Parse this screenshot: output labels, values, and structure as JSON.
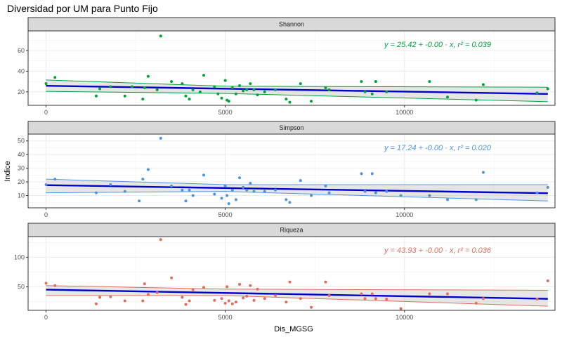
{
  "title": "Diversidad por UM para Punto Fijo",
  "x_axis_title": "Dis_MGSG",
  "y_axis_title": "Indice",
  "chart_data": {
    "type": "scatter",
    "title": "Diversidad por UM para Punto Fijo",
    "xlabel": "Dis_MGSG",
    "ylabel": "Indice",
    "xlim": [
      -500,
      14200
    ],
    "x_ticks": [
      0,
      5000,
      10000
    ],
    "grid": true,
    "fit_line_color": "#0000cc",
    "panels": [
      {
        "name": "Shannon",
        "color": "#00a33c",
        "ylim": [
          7,
          79
        ],
        "y_ticks": [
          20,
          40,
          60
        ],
        "equation": "y = 25.42 + -0.00 · x,  r² = 0.039",
        "fit": {
          "x": [
            0,
            14000
          ],
          "y": [
            25.9,
            18.0
          ]
        },
        "band_upper": [
          [
            0,
            31.5
          ],
          [
            5000,
            25.5
          ],
          [
            14000,
            24.5
          ]
        ],
        "band_lower": [
          [
            0,
            20.5
          ],
          [
            5000,
            18.5
          ],
          [
            14000,
            10.5
          ]
        ],
        "points": [
          [
            0,
            28
          ],
          [
            250,
            34
          ],
          [
            1400,
            16
          ],
          [
            1500,
            23
          ],
          [
            1800,
            25
          ],
          [
            2200,
            16
          ],
          [
            2400,
            25
          ],
          [
            2700,
            13
          ],
          [
            2750,
            24
          ],
          [
            2850,
            35
          ],
          [
            3100,
            22
          ],
          [
            3200,
            74
          ],
          [
            3500,
            30
          ],
          [
            3800,
            28
          ],
          [
            3900,
            16
          ],
          [
            4000,
            13
          ],
          [
            4100,
            22
          ],
          [
            4300,
            20
          ],
          [
            4400,
            36
          ],
          [
            4700,
            25
          ],
          [
            4800,
            18
          ],
          [
            4900,
            14
          ],
          [
            5000,
            31
          ],
          [
            5050,
            12
          ],
          [
            5100,
            11
          ],
          [
            5200,
            24
          ],
          [
            5300,
            18
          ],
          [
            5400,
            26
          ],
          [
            5500,
            21
          ],
          [
            5600,
            22
          ],
          [
            5700,
            28
          ],
          [
            5800,
            22
          ],
          [
            5900,
            17
          ],
          [
            6100,
            20
          ],
          [
            6400,
            22
          ],
          [
            6700,
            13
          ],
          [
            6800,
            10
          ],
          [
            7100,
            28
          ],
          [
            7400,
            11
          ],
          [
            7800,
            24
          ],
          [
            7900,
            22
          ],
          [
            8800,
            30
          ],
          [
            8900,
            20
          ],
          [
            9100,
            18
          ],
          [
            9200,
            30
          ],
          [
            9500,
            20
          ],
          [
            10700,
            30
          ],
          [
            11200,
            15
          ],
          [
            12000,
            12
          ],
          [
            12200,
            27
          ],
          [
            13700,
            19
          ],
          [
            14000,
            23
          ]
        ]
      },
      {
        "name": "Simpson",
        "color": "#4d94e0",
        "ylim": [
          1,
          55
        ],
        "y_ticks": [
          10,
          20,
          30,
          40,
          50
        ],
        "equation": "y = 17.24 + -0.00 · x,  r² = 0.020",
        "fit": {
          "x": [
            0,
            14000
          ],
          "y": [
            17.6,
            11.7
          ]
        },
        "band_upper": [
          [
            0,
            22
          ],
          [
            5000,
            18
          ],
          [
            14000,
            18
          ]
        ],
        "band_lower": [
          [
            0,
            12
          ],
          [
            5000,
            13
          ],
          [
            14000,
            6
          ]
        ],
        "points": [
          [
            0,
            18
          ],
          [
            250,
            22
          ],
          [
            1400,
            12
          ],
          [
            1800,
            18
          ],
          [
            2200,
            13
          ],
          [
            2600,
            6
          ],
          [
            2700,
            22
          ],
          [
            2850,
            29
          ],
          [
            3200,
            52
          ],
          [
            3500,
            17
          ],
          [
            3800,
            14
          ],
          [
            3900,
            6
          ],
          [
            4000,
            14
          ],
          [
            4100,
            10
          ],
          [
            4400,
            25
          ],
          [
            4700,
            11
          ],
          [
            4900,
            8
          ],
          [
            5000,
            17
          ],
          [
            5050,
            10
          ],
          [
            5100,
            4
          ],
          [
            5200,
            14
          ],
          [
            5300,
            7
          ],
          [
            5400,
            23
          ],
          [
            5500,
            16
          ],
          [
            5600,
            14
          ],
          [
            5700,
            19
          ],
          [
            5800,
            13
          ],
          [
            6100,
            13
          ],
          [
            6400,
            14
          ],
          [
            6700,
            7
          ],
          [
            6800,
            5
          ],
          [
            7100,
            21
          ],
          [
            7400,
            10
          ],
          [
            7800,
            17
          ],
          [
            7900,
            12
          ],
          [
            8800,
            26
          ],
          [
            8900,
            13
          ],
          [
            9100,
            26
          ],
          [
            9200,
            12
          ],
          [
            9500,
            13
          ],
          [
            9900,
            10
          ],
          [
            10700,
            10
          ],
          [
            11200,
            7
          ],
          [
            12000,
            7
          ],
          [
            12200,
            27
          ],
          [
            13700,
            12
          ],
          [
            14000,
            16
          ]
        ]
      },
      {
        "name": "Riqueza",
        "color": "#e36d5c",
        "ylim": [
          10,
          135
        ],
        "y_ticks": [
          50,
          100
        ],
        "equation": "y = 43.93 + -0.00 · x,  r² = 0.036",
        "fit": {
          "x": [
            0,
            14000
          ],
          "y": [
            45.0,
            29.5
          ]
        },
        "band_upper": [
          [
            0,
            52
          ],
          [
            5000,
            46
          ],
          [
            14000,
            44
          ]
        ],
        "band_lower": [
          [
            0,
            35
          ],
          [
            5000,
            35
          ],
          [
            14000,
            17
          ]
        ],
        "points": [
          [
            0,
            56
          ],
          [
            250,
            52
          ],
          [
            1400,
            21
          ],
          [
            1500,
            32
          ],
          [
            1800,
            33
          ],
          [
            2200,
            26
          ],
          [
            2700,
            26
          ],
          [
            2750,
            55
          ],
          [
            2850,
            37
          ],
          [
            3100,
            40
          ],
          [
            3200,
            130
          ],
          [
            3500,
            65
          ],
          [
            3800,
            32
          ],
          [
            3900,
            20
          ],
          [
            4000,
            26
          ],
          [
            4100,
            45
          ],
          [
            4400,
            49
          ],
          [
            4700,
            27
          ],
          [
            4900,
            30
          ],
          [
            5000,
            22
          ],
          [
            5050,
            50
          ],
          [
            5100,
            26
          ],
          [
            5200,
            21
          ],
          [
            5300,
            24
          ],
          [
            5400,
            54
          ],
          [
            5500,
            31
          ],
          [
            5600,
            34
          ],
          [
            5700,
            52
          ],
          [
            5800,
            27
          ],
          [
            5900,
            46
          ],
          [
            6100,
            30
          ],
          [
            6400,
            35
          ],
          [
            6700,
            24
          ],
          [
            6800,
            58
          ],
          [
            7100,
            30
          ],
          [
            7400,
            15
          ],
          [
            7800,
            58
          ],
          [
            7900,
            35
          ],
          [
            8800,
            38
          ],
          [
            8900,
            30
          ],
          [
            9100,
            38
          ],
          [
            9200,
            30
          ],
          [
            9500,
            29
          ],
          [
            9900,
            13
          ],
          [
            10700,
            38
          ],
          [
            11200,
            38
          ],
          [
            12000,
            22
          ],
          [
            12200,
            30
          ],
          [
            13700,
            29
          ],
          [
            14000,
            60
          ]
        ]
      }
    ]
  }
}
